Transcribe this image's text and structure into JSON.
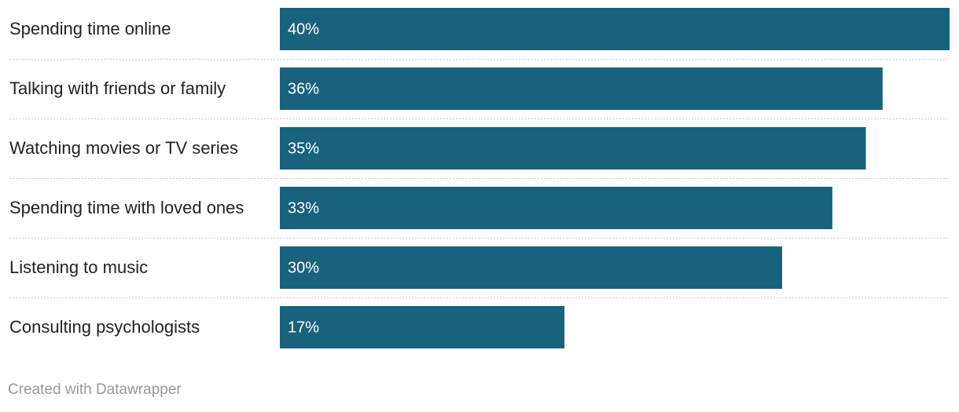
{
  "chart_data": {
    "type": "bar",
    "orientation": "horizontal",
    "categories": [
      "Spending time online",
      "Talking with friends or family",
      "Watching movies or TV series",
      "Spending time with loved ones",
      "Listening to music",
      "Consulting psychologists"
    ],
    "values": [
      40,
      36,
      35,
      33,
      30,
      17
    ],
    "value_labels": [
      "40%",
      "36%",
      "35%",
      "33%",
      "30%",
      "17%"
    ],
    "color": "#19627d",
    "credit": "Created with Datawrapper"
  }
}
